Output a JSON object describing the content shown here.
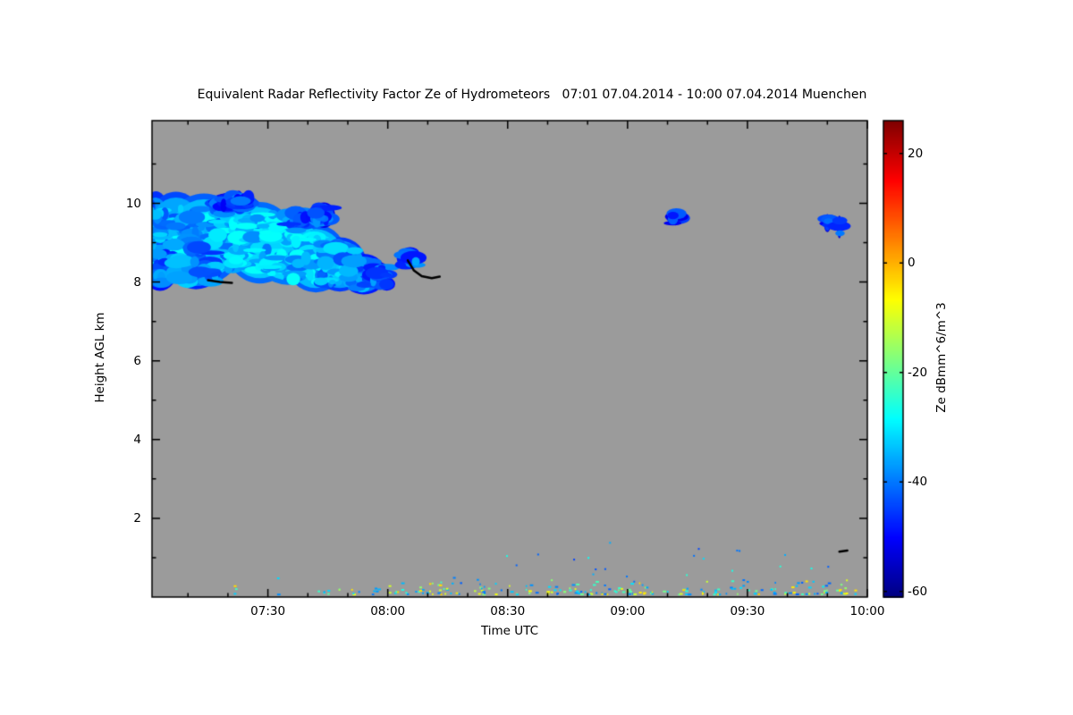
{
  "chart_data": {
    "type": "heatmap",
    "title": "Equivalent Radar Reflectivity Factor Ze of Hydrometeors   07:01 07.04.2014 - 10:00 07.04.2014 Muenchen",
    "station": "Muenchen",
    "time_start": "07:01 07.04.2014",
    "time_end": "10:00 07.04.2014",
    "xlabel": "Time UTC",
    "ylabel": "Height AGL km",
    "x_total_minutes": 179,
    "x_ticks": [
      {
        "label": "07:30",
        "t": 29
      },
      {
        "label": "08:00",
        "t": 59
      },
      {
        "label": "08:30",
        "t": 89
      },
      {
        "label": "09:00",
        "t": 119
      },
      {
        "label": "09:30",
        "t": 149
      },
      {
        "label": "10:00",
        "t": 179
      }
    ],
    "x_minor_step_minutes": 10,
    "y_ticks": [
      2,
      4,
      6,
      8,
      10
    ],
    "ylim": [
      0,
      12.1
    ],
    "plot_background": "#9b9b9b",
    "frame_color": "#000000",
    "colorbar": {
      "label": "Ze dBmm^6/m^3",
      "ticks": [
        20,
        0,
        -20,
        -40,
        -60
      ],
      "range": [
        -61,
        26
      ],
      "colormap": "jet"
    },
    "cloud_blobs": [
      [
        1,
        9.1,
        4,
        1.05,
        -38
      ],
      [
        6,
        9.2,
        7,
        0.95,
        -36
      ],
      [
        13,
        9.1,
        9,
        1.0,
        -34
      ],
      [
        21,
        9.3,
        8,
        0.85,
        -35
      ],
      [
        27,
        9.0,
        8,
        0.9,
        -33
      ],
      [
        34,
        8.85,
        8,
        0.8,
        -32
      ],
      [
        41,
        8.6,
        7,
        0.75,
        -34
      ],
      [
        47,
        8.45,
        6,
        0.6,
        -37
      ],
      [
        53,
        8.2,
        5,
        0.45,
        -40
      ],
      [
        57,
        8.15,
        2.5,
        0.3,
        -43
      ],
      [
        2,
        8.35,
        4,
        0.5,
        -41
      ],
      [
        11,
        8.45,
        6,
        0.55,
        -39
      ],
      [
        19,
        10.0,
        4,
        0.22,
        -44
      ],
      [
        23,
        10.05,
        2,
        0.18,
        -43
      ],
      [
        36,
        9.55,
        3,
        0.3,
        -42
      ],
      [
        43,
        9.7,
        2.5,
        0.28,
        -44
      ],
      [
        64.5,
        8.6,
        2.2,
        0.22,
        -42
      ],
      [
        131,
        9.62,
        1.0,
        0.16,
        -45
      ],
      [
        169,
        9.5,
        0.8,
        0.2,
        -45
      ],
      [
        172,
        9.4,
        0.5,
        0.25,
        -46
      ]
    ],
    "black_marks": [
      [
        [
          14,
          8.05
        ],
        [
          17,
          8.0
        ],
        [
          20,
          7.98
        ]
      ],
      [
        [
          64,
          8.55
        ],
        [
          65.5,
          8.3
        ],
        [
          67.5,
          8.15
        ],
        [
          70,
          8.1
        ],
        [
          72,
          8.14
        ]
      ],
      [
        [
          172,
          1.15
        ],
        [
          174,
          1.18
        ]
      ]
    ],
    "surface_clutter": {
      "h_max": 0.45,
      "ze_range": [
        -45,
        0
      ],
      "bands": [
        {
          "t0": 18,
          "t1": 55,
          "density": 0.12
        },
        {
          "t0": 55,
          "t1": 125,
          "density": 0.42
        },
        {
          "t0": 125,
          "t1": 179,
          "density": 0.32
        }
      ],
      "elevated": {
        "t0": 85,
        "t1": 172,
        "h_min": 0.5,
        "h_max": 1.4,
        "density": 0.14
      }
    },
    "seed": 20140407
  }
}
